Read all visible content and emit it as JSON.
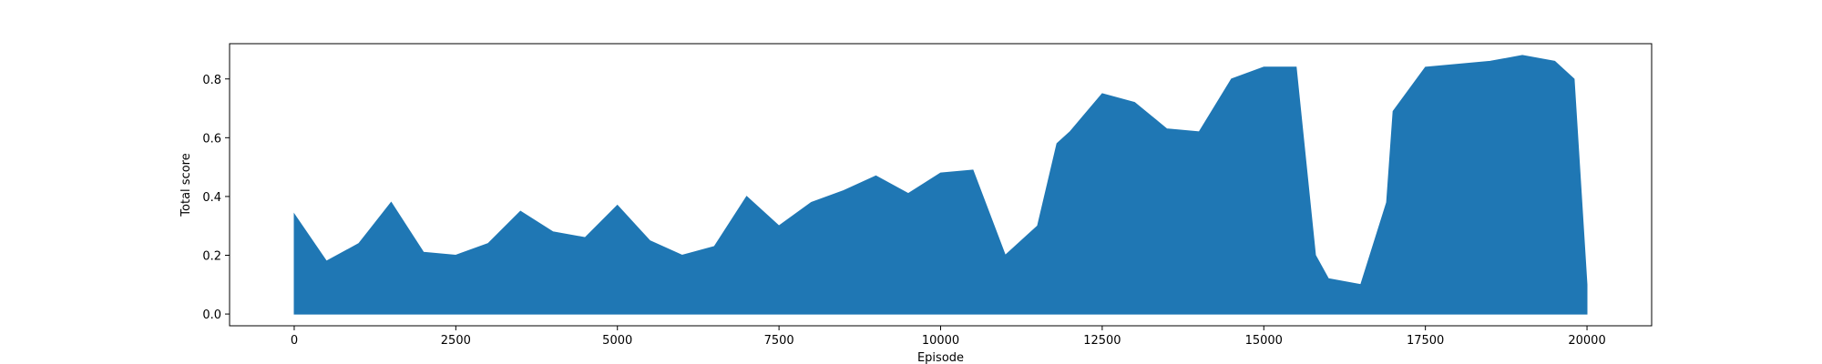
{
  "chart_data": {
    "type": "line",
    "title": "",
    "xlabel": "Episode",
    "ylabel": "Total score",
    "xlim": [
      -1000,
      21000
    ],
    "ylim": [
      -0.04,
      0.92
    ],
    "x_ticks": [
      0,
      2500,
      5000,
      7500,
      10000,
      12500,
      15000,
      17500,
      20000
    ],
    "x_tick_labels": [
      "0",
      "2500",
      "5000",
      "7500",
      "10000",
      "12500",
      "15000",
      "17500",
      "20000"
    ],
    "y_ticks": [
      0.0,
      0.2,
      0.4,
      0.6,
      0.8
    ],
    "y_tick_labels": [
      "0.0",
      "0.2",
      "0.4",
      "0.6",
      "0.8"
    ],
    "grid": false,
    "legend": "none",
    "color": "#1f77b4",
    "series": [
      {
        "x": [
          0,
          500,
          1000,
          1500,
          2000,
          2500,
          3000,
          3500,
          4000,
          4500,
          5000,
          5500,
          6000,
          6500,
          7000,
          7500,
          8000,
          8500,
          9000,
          9500,
          10000,
          10500,
          11000,
          11500,
          11800,
          12000,
          12500,
          13000,
          13500,
          14000,
          14500,
          15000,
          15500,
          15800,
          16000,
          16500,
          16900,
          17000,
          17500,
          18000,
          18500,
          19000,
          19500,
          19800,
          20000
        ],
        "values": [
          0.34,
          0.18,
          0.24,
          0.38,
          0.21,
          0.2,
          0.24,
          0.35,
          0.28,
          0.26,
          0.37,
          0.25,
          0.2,
          0.23,
          0.4,
          0.3,
          0.38,
          0.42,
          0.47,
          0.41,
          0.48,
          0.49,
          0.2,
          0.3,
          0.58,
          0.62,
          0.75,
          0.72,
          0.63,
          0.62,
          0.8,
          0.84,
          0.84,
          0.2,
          0.12,
          0.1,
          0.38,
          0.69,
          0.84,
          0.85,
          0.86,
          0.88,
          0.86,
          0.8,
          0.1
        ],
        "floor": [
          0.0,
          0.0,
          0.0,
          0.0,
          0.0,
          0.0,
          0.0,
          0.0,
          0.0,
          0.0,
          0.0,
          0.0,
          0.0,
          0.0,
          0.0,
          0.0,
          0.0,
          0.0,
          0.0,
          0.0,
          0.0,
          0.0,
          0.0,
          0.0,
          0.0,
          0.0,
          0.0,
          0.0,
          0.0,
          0.0,
          0.0,
          0.0,
          0.0,
          0.0,
          0.0,
          0.0,
          0.0,
          0.0,
          0.0,
          0.0,
          0.0,
          0.0,
          0.0,
          0.0,
          0.0
        ]
      }
    ]
  }
}
